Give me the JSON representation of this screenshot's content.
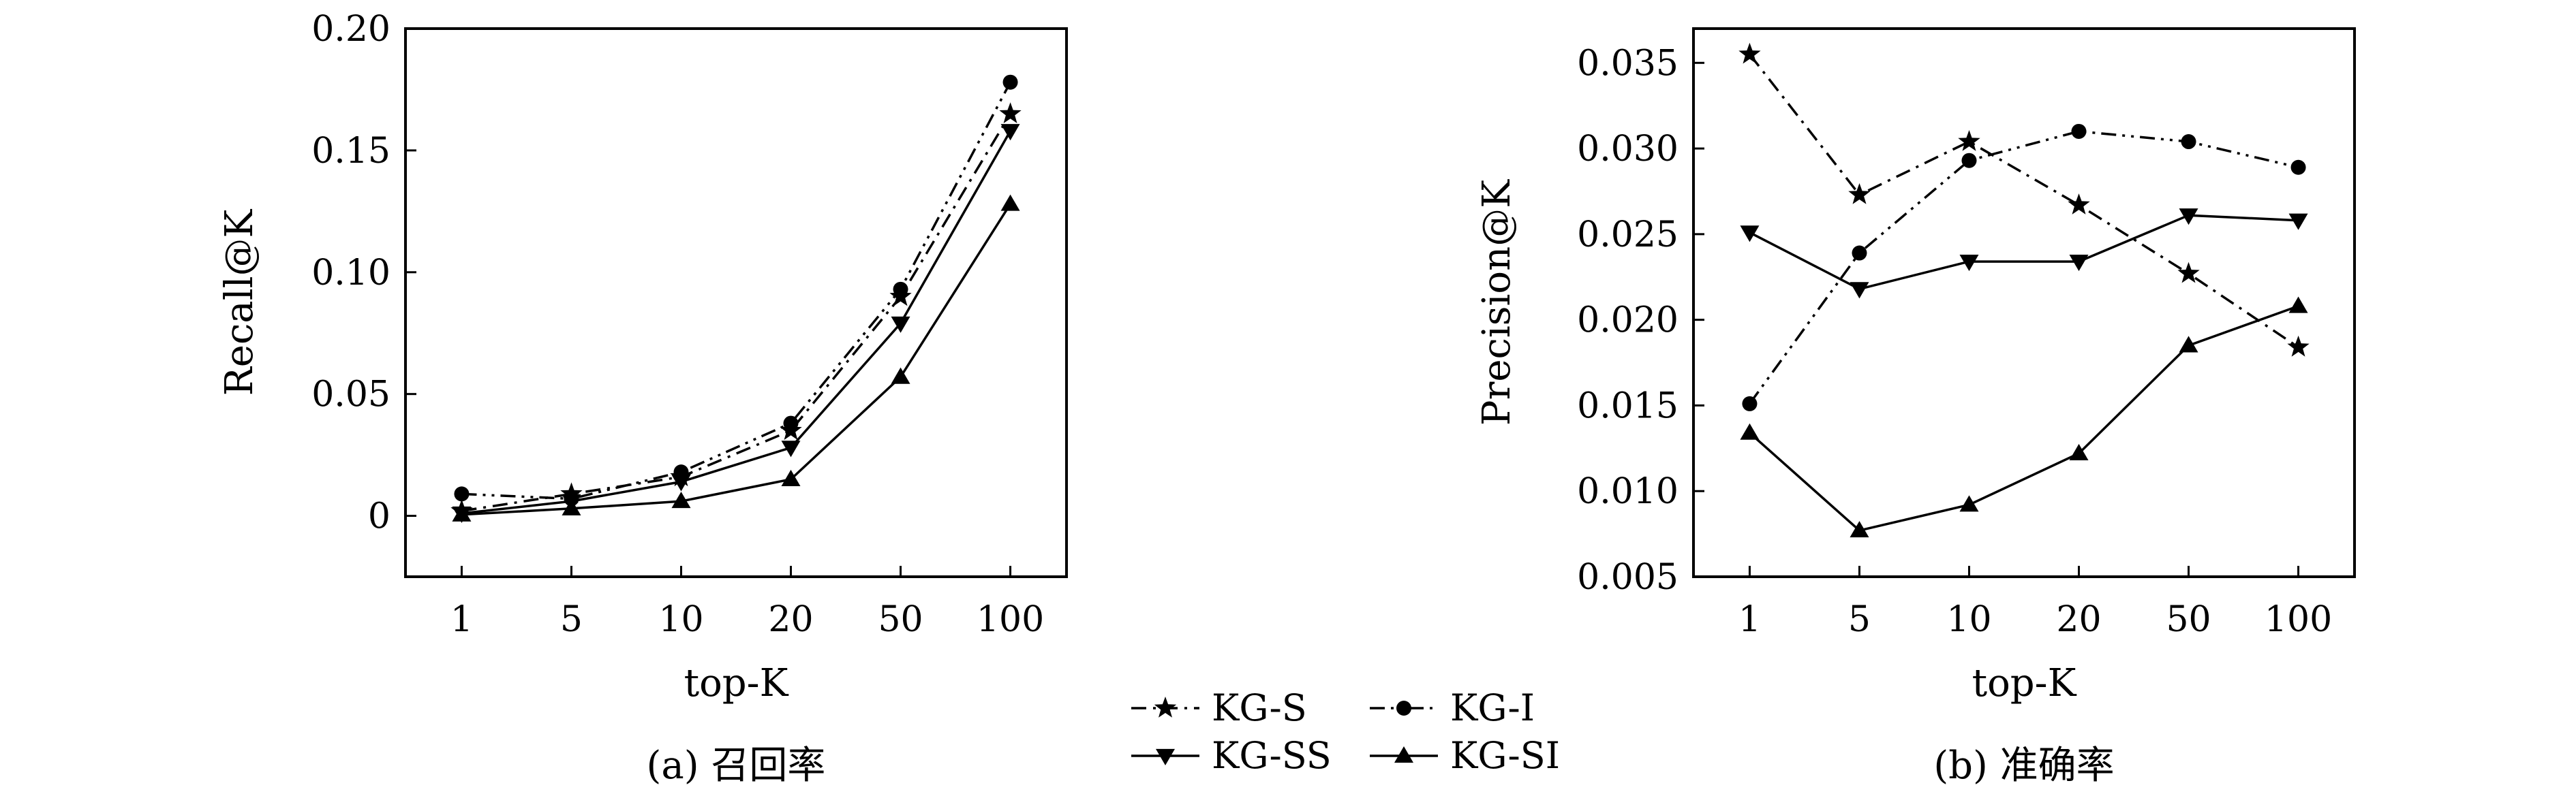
{
  "chart_data": [
    {
      "type": "line",
      "caption": "(a) 召回率",
      "xlabel": "top-K",
      "ylabel": "Recall@K",
      "categories": [
        "1",
        "5",
        "10",
        "20",
        "50",
        "100"
      ],
      "ylim": [
        -0.025,
        0.2
      ],
      "yticks": [
        0,
        0.05,
        0.1,
        0.15,
        0.2
      ],
      "ytick_labels": [
        "0",
        "0.05",
        "0.10",
        "0.15",
        "0.20"
      ],
      "grid": false,
      "series": [
        {
          "name": "KG-S",
          "marker": "star",
          "dash": "dash-dot",
          "values": [
            0.002,
            0.009,
            0.016,
            0.035,
            0.09,
            0.165
          ]
        },
        {
          "name": "KG-I",
          "marker": "circle",
          "dash": "dash-dot-dot",
          "values": [
            0.009,
            0.007,
            0.018,
            0.038,
            0.093,
            0.178
          ]
        },
        {
          "name": "KG-SS",
          "marker": "triangle-down",
          "dash": "solid",
          "values": [
            0.001,
            0.006,
            0.014,
            0.028,
            0.079,
            0.158
          ]
        },
        {
          "name": "KG-SI",
          "marker": "triangle-up",
          "dash": "solid",
          "values": [
            0.0005,
            0.003,
            0.006,
            0.015,
            0.057,
            0.128
          ]
        }
      ]
    },
    {
      "type": "line",
      "caption": "(b) 准确率",
      "xlabel": "top-K",
      "ylabel": "Precision@K",
      "categories": [
        "1",
        "5",
        "10",
        "20",
        "50",
        "100"
      ],
      "ylim": [
        0.005,
        0.037
      ],
      "yticks": [
        0.005,
        0.01,
        0.015,
        0.02,
        0.025,
        0.03,
        0.035
      ],
      "ytick_labels": [
        "0.005",
        "0.010",
        "0.015",
        "0.020",
        "0.025",
        "0.030",
        "0.035"
      ],
      "grid": false,
      "series": [
        {
          "name": "KG-S",
          "marker": "star",
          "dash": "dash-dot",
          "values": [
            0.0355,
            0.0273,
            0.0304,
            0.0267,
            0.0227,
            0.0184
          ]
        },
        {
          "name": "KG-I",
          "marker": "circle",
          "dash": "dash-dot-dot",
          "values": [
            0.0151,
            0.0239,
            0.0293,
            0.031,
            0.0304,
            0.0289
          ]
        },
        {
          "name": "KG-SS",
          "marker": "triangle-down",
          "dash": "solid",
          "values": [
            0.0251,
            0.0218,
            0.0234,
            0.0234,
            0.0261,
            0.0258
          ]
        },
        {
          "name": "KG-SI",
          "marker": "triangle-up",
          "dash": "solid",
          "values": [
            0.0134,
            0.0077,
            0.0092,
            0.0122,
            0.0185,
            0.0208
          ]
        }
      ]
    }
  ],
  "legend": {
    "placement": "bottom-center",
    "items": [
      {
        "label": "KG-S",
        "marker": "star",
        "dash": "dash-dot"
      },
      {
        "label": "KG-I",
        "marker": "circle",
        "dash": "dash-dot-dot"
      },
      {
        "label": "KG-SS",
        "marker": "triangle-down",
        "dash": "solid"
      },
      {
        "label": "KG-SI",
        "marker": "triangle-up",
        "dash": "solid"
      }
    ]
  },
  "colors": {
    "ink": "#000000",
    "background": "#ffffff"
  }
}
